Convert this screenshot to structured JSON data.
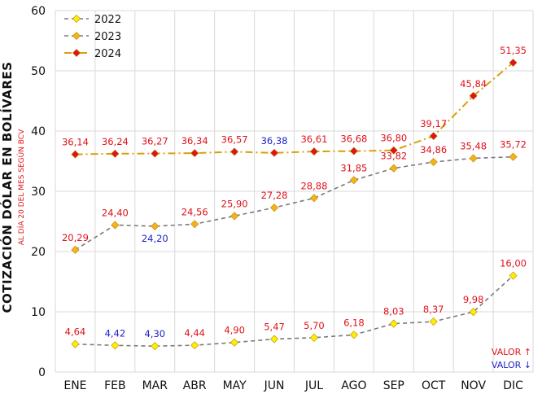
{
  "chart_data": {
    "type": "line",
    "ylabel": "COTIZACIÓN DÓLAR EN BOLÍVARES",
    "ylabel_sub": "AL DÍA 20 DEL MES SEGÚN BCV",
    "ylim": [
      0,
      60
    ],
    "yticks": [
      0,
      10,
      20,
      30,
      40,
      50,
      60
    ],
    "grid": true,
    "legend_position": "top-left",
    "categories": [
      "ENE",
      "FEB",
      "MAR",
      "ABR",
      "MAY",
      "JUN",
      "JUL",
      "AGO",
      "SEP",
      "OCT",
      "NOV",
      "DIC"
    ],
    "series": [
      {
        "name": "2022",
        "color": "#7a7a7a",
        "marker_color": "#ffee00",
        "dash": "dashed",
        "values": [
          4.64,
          4.42,
          4.3,
          4.44,
          4.9,
          5.47,
          5.7,
          6.18,
          8.03,
          8.37,
          9.98,
          16.0
        ],
        "labels": [
          "4,64",
          "4,42",
          "4,30",
          "4,44",
          "4,90",
          "5,47",
          "5,70",
          "6,18",
          "8,03",
          "8,37",
          "9,98",
          "16,00"
        ],
        "label_colors": [
          "#e0121b",
          "#1e22c8",
          "#1e22c8",
          "#e0121b",
          "#e0121b",
          "#e0121b",
          "#e0121b",
          "#e0121b",
          "#e0121b",
          "#e0121b",
          "#e0121b",
          "#e0121b"
        ]
      },
      {
        "name": "2023",
        "color": "#7a7a7a",
        "marker_color": "#f6b21a",
        "dash": "dashed",
        "values": [
          20.29,
          24.4,
          24.2,
          24.56,
          25.9,
          27.28,
          28.88,
          31.85,
          33.82,
          34.86,
          35.48,
          35.72
        ],
        "labels": [
          "20,29",
          "24,40",
          "24,20",
          "24,56",
          "25,90",
          "27,28",
          "28,88",
          "31,85",
          "33,82",
          "34,86",
          "35,48",
          "35,72"
        ],
        "label_colors": [
          "#e0121b",
          "#e0121b",
          "#1e22c8",
          "#e0121b",
          "#e0121b",
          "#e0121b",
          "#e0121b",
          "#e0121b",
          "#e0121b",
          "#e0121b",
          "#e0121b",
          "#e0121b"
        ]
      },
      {
        "name": "2024",
        "color": "#d9a00a",
        "marker_color": "#e0121b",
        "dash": "dashdot",
        "values": [
          36.14,
          36.24,
          36.27,
          36.34,
          36.57,
          36.38,
          36.61,
          36.68,
          36.8,
          39.17,
          45.84,
          51.35
        ],
        "labels": [
          "36,14",
          "36,24",
          "36,27",
          "36,34",
          "36,57",
          "36,38",
          "36,61",
          "36,68",
          "36,80",
          "39,17",
          "45,84",
          "51,35"
        ],
        "label_colors": [
          "#e0121b",
          "#e0121b",
          "#e0121b",
          "#e0121b",
          "#e0121b",
          "#1e22c8",
          "#e0121b",
          "#e0121b",
          "#e0121b",
          "#e0121b",
          "#e0121b",
          "#e0121b"
        ]
      }
    ],
    "annotations": [
      {
        "text": "VALOR ↑",
        "color": "#e0121b"
      },
      {
        "text": "VALOR ↓",
        "color": "#1e22c8"
      }
    ]
  }
}
